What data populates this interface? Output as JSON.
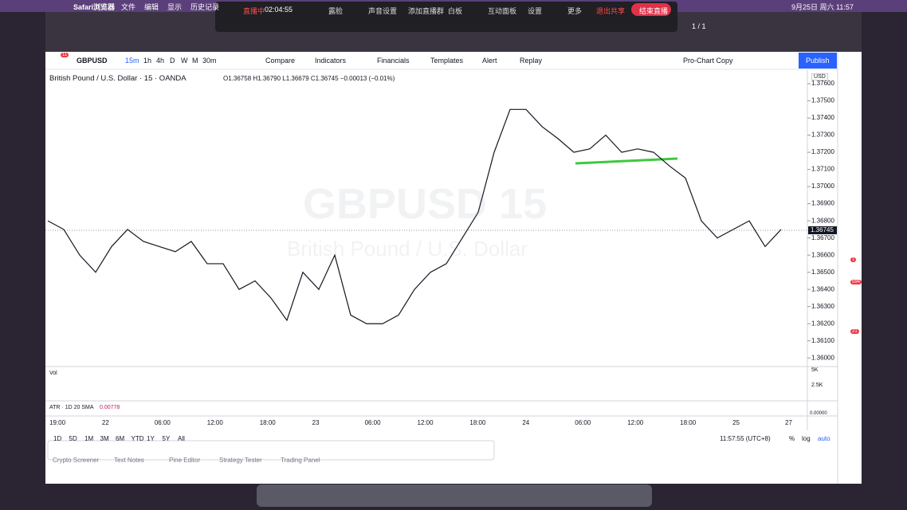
{
  "menubar": {
    "app": "Safari浏览器",
    "items": [
      "文件",
      "编辑",
      "显示",
      "历史记录"
    ],
    "clock": "9月25日 周六 11:57"
  },
  "meeting_bar": {
    "status": "直播中",
    "timer": "02:04:55",
    "items": [
      "露脸",
      "声音设置",
      "添加直播群",
      "白板",
      "互动面板",
      "设置",
      "更多"
    ],
    "stop_share": "退出共享",
    "end_live": "结束直播",
    "page": "1 / 1"
  },
  "toolbar": {
    "symbol": "GBPUSD",
    "intervals": [
      "15m",
      "1h",
      "4h",
      "D",
      "W",
      "M",
      "30m"
    ],
    "buttons": [
      "Compare",
      "Indicators",
      "Financials",
      "Templates",
      "Alert",
      "Replay"
    ],
    "layout": "Pro-Chart Copy",
    "publish": "Publish",
    "notifications": "11"
  },
  "legend": {
    "name": "British Pound / U.S. Dollar · 15 · OANDA",
    "ohlc": "O1.36758 H1.36790 L1.36679 C1.36745 −0.00013 (−0.01%)"
  },
  "watermark": {
    "symbol": "GBPUSD 15",
    "name": "British Pound / U.S. Dollar"
  },
  "chart": {
    "close": [
      1.368,
      1.3675,
      1.366,
      1.365,
      1.3665,
      1.3675,
      1.3668,
      1.3665,
      1.3662,
      1.3668,
      1.3655,
      1.3655,
      1.364,
      1.3645,
      1.3635,
      1.3622,
      1.365,
      1.364,
      1.366,
      1.3625,
      1.362,
      1.362,
      1.3625,
      1.364,
      1.365,
      1.3655,
      1.367,
      1.3685,
      1.372,
      1.3745,
      1.3745,
      1.3735,
      1.3728,
      1.372,
      1.3722,
      1.373,
      1.372,
      1.3722,
      1.372,
      1.3712,
      1.3705,
      1.368,
      1.367,
      1.3675,
      1.368,
      1.3665,
      1.3675
    ],
    "ylim": [
      1.3595,
      1.3767
    ],
    "yticks": [
      {
        "value": 1.36,
        "label": "1.36000"
      },
      {
        "value": 1.361,
        "label": "1.36100"
      },
      {
        "value": 1.362,
        "label": "1.36200"
      },
      {
        "value": 1.363,
        "label": "1.36300"
      },
      {
        "value": 1.364,
        "label": "1.36400"
      },
      {
        "value": 1.365,
        "label": "1.36500"
      },
      {
        "value": 1.366,
        "label": "1.36600"
      },
      {
        "value": 1.367,
        "label": "1.36700"
      },
      {
        "value": 1.368,
        "label": "1.36800"
      },
      {
        "value": 1.369,
        "label": "1.36900"
      },
      {
        "value": 1.37,
        "label": "1.37000"
      },
      {
        "value": 1.371,
        "label": "1.37100"
      },
      {
        "value": 1.372,
        "label": "1.37200"
      },
      {
        "value": 1.373,
        "label": "1.37300"
      },
      {
        "value": 1.374,
        "label": "1.37400"
      },
      {
        "value": 1.375,
        "label": "1.37500"
      },
      {
        "value": 1.376,
        "label": "1.37600"
      }
    ],
    "last_price": {
      "value": 1.36745,
      "label": "1.36745"
    },
    "currency": "USD"
  },
  "time_axis": [
    "19:00",
    "22",
    "06:00",
    "12:00",
    "18:00",
    "23",
    "06:00",
    "12:00",
    "18:00",
    "24",
    "06:00",
    "12:00",
    "18:00",
    "25",
    "27"
  ],
  "volume": {
    "title": "Vol",
    "ticks": [
      "5K",
      "2.5K"
    ]
  },
  "atr": {
    "title": "ATR · 1D 20 SMA",
    "value": "0.00778",
    "scale": "0.00000"
  },
  "ranges": [
    "1D",
    "5D",
    "1M",
    "3M",
    "6M",
    "YTD",
    "1Y",
    "5Y",
    "All"
  ],
  "bottom": {
    "clock": "11:57:55 (UTC+8)",
    "percent": "%",
    "log": "log",
    "auto": "auto"
  },
  "tabs": [
    "Crypto Screener",
    "Text Notes",
    "Pine Editor",
    "Strategy Tester",
    "Trading Panel"
  ],
  "sidebar_badges": [
    "1",
    "594",
    "21"
  ]
}
